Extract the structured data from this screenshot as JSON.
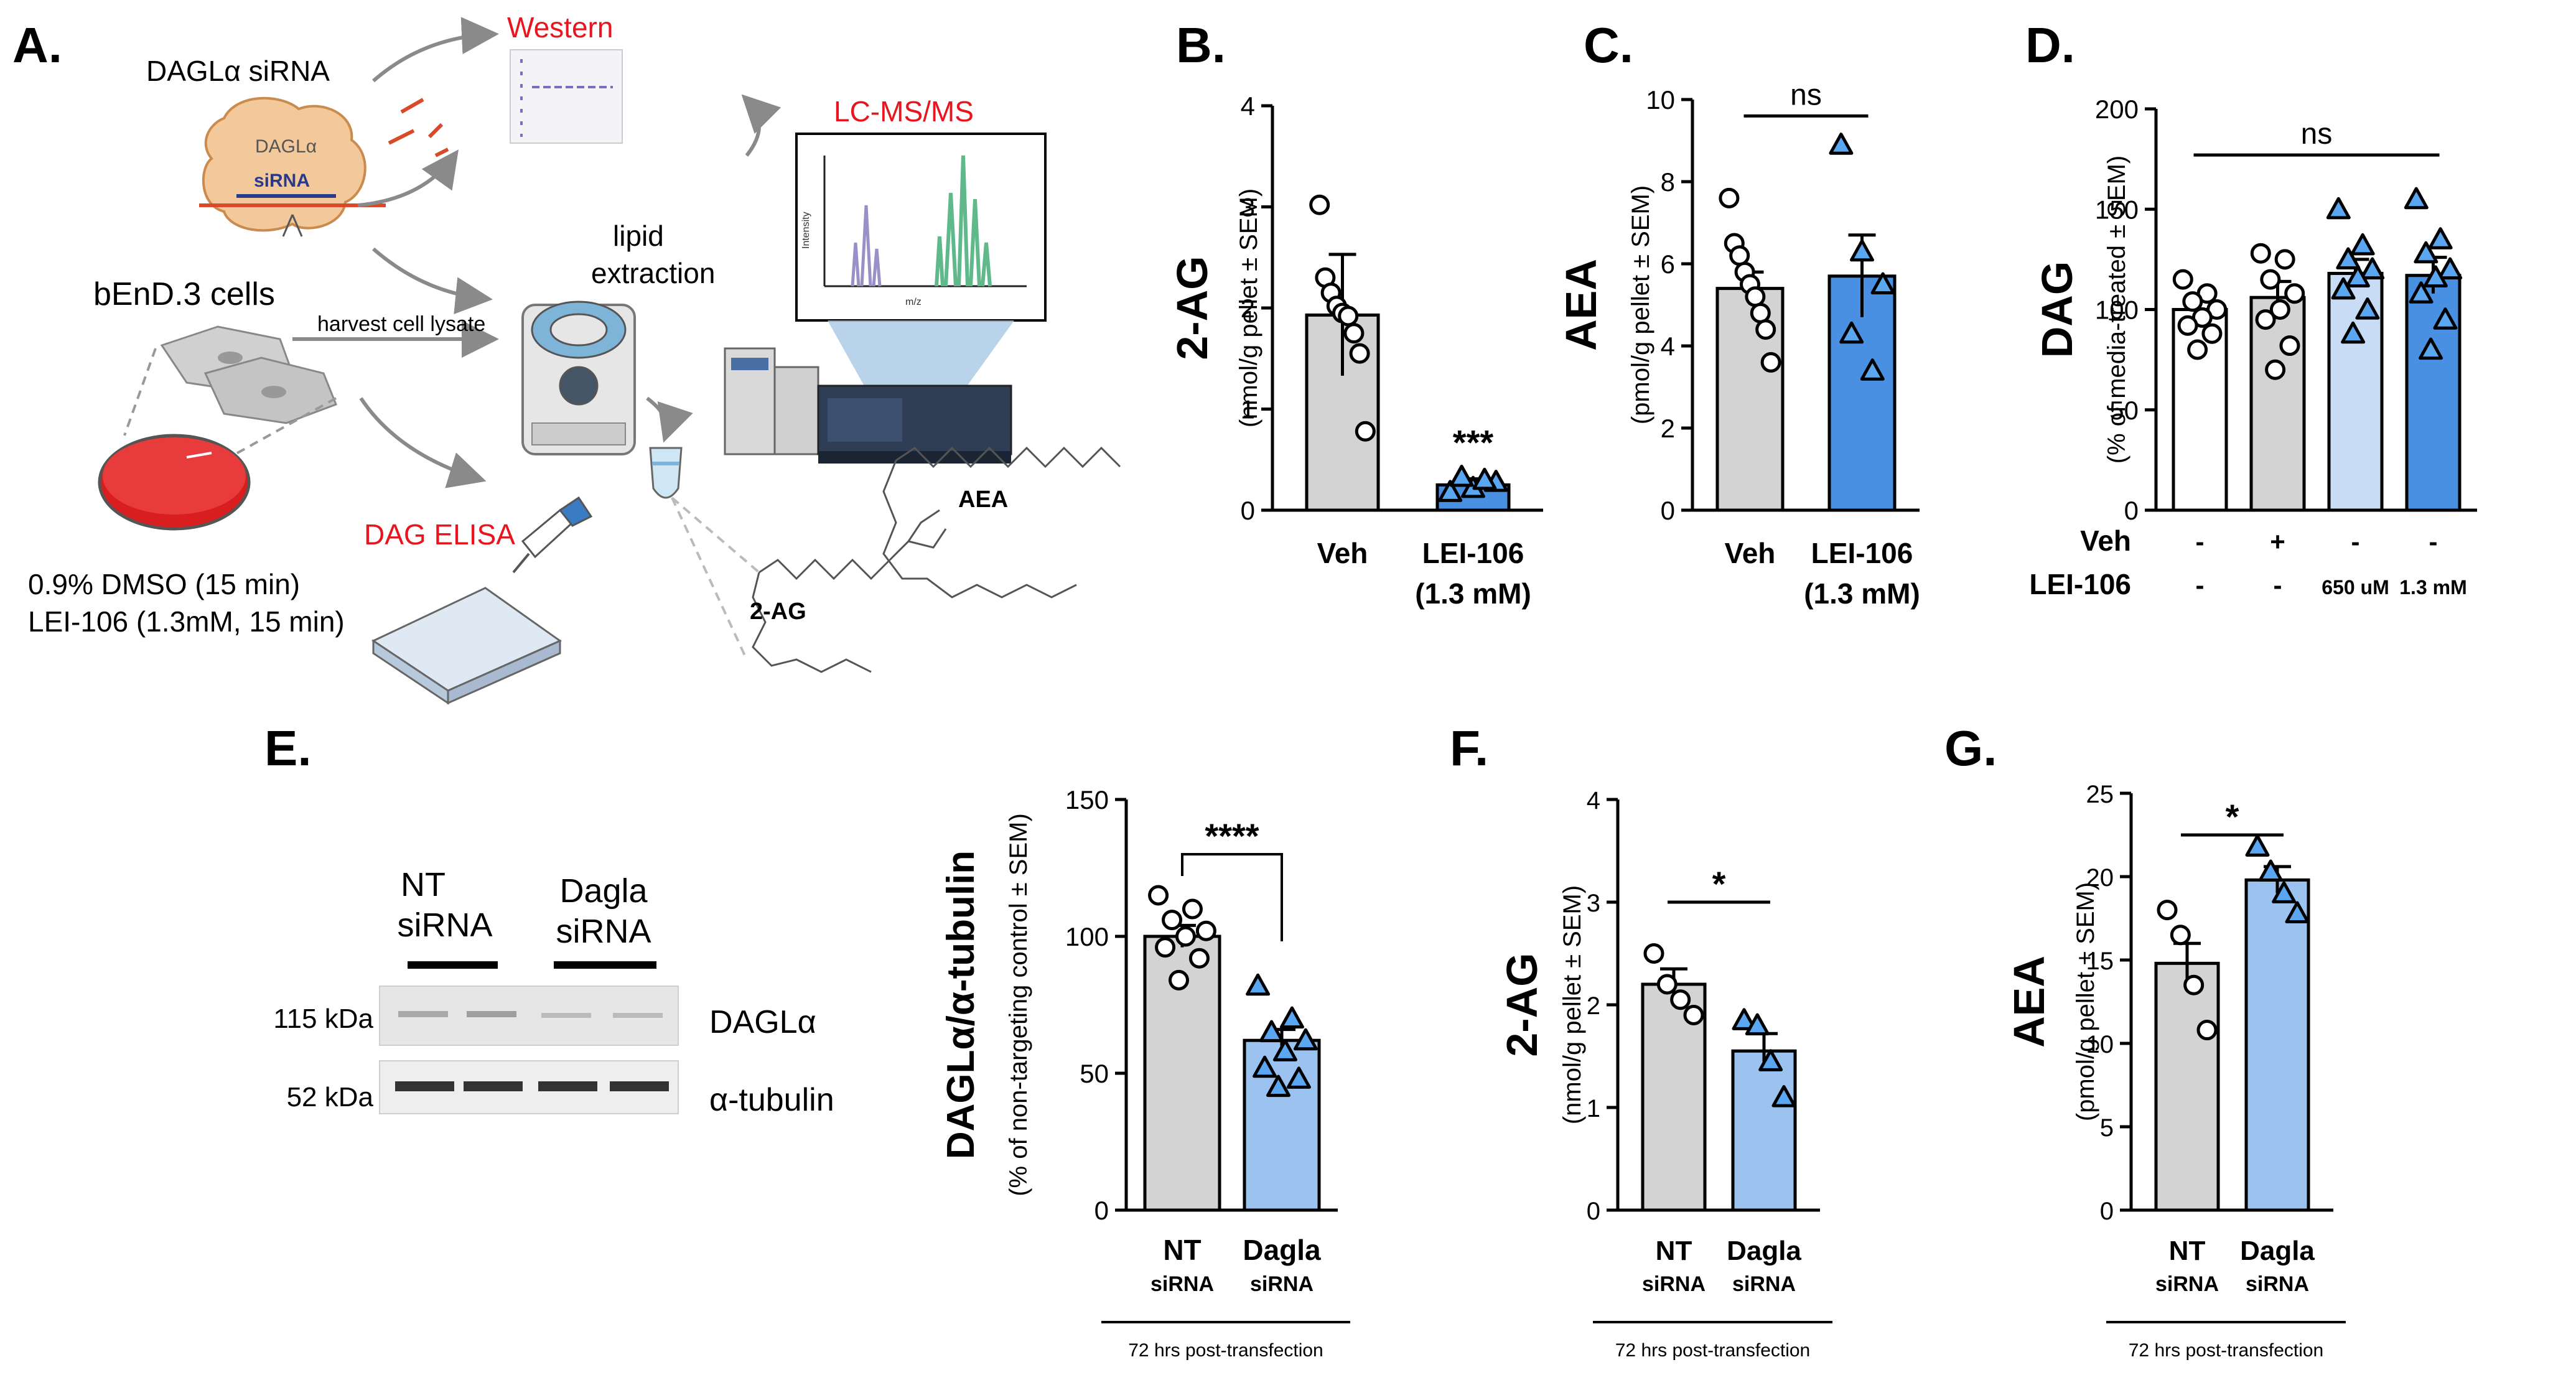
{
  "colors": {
    "grey_bar": "#d3d3d3",
    "blue_bar": "#4a90e2",
    "light_blue_bar": "#c9dcf5",
    "mid_blue_bar": "#9cc3f0",
    "red_text": "#e8141e",
    "lc_green": "#5fb98a",
    "lc_purple": "#9a8fc6",
    "dish_red": "#d81e1e"
  },
  "panel_a": {
    "letter": "A.",
    "western": "Western",
    "dagl_sirna": "DAGLα siRNA",
    "dagla_protein": "DAGLα",
    "sirna_label": "siRNA",
    "bend3": "bEnD.3 cells",
    "harvest": "harvest cell lysate",
    "lipid_line1": "lipid",
    "lipid_line2": "extraction",
    "lcms": "LC-MS/MS",
    "intensity": "Intensity",
    "mz": "m/z",
    "dag_elisa": "DAG ELISA",
    "treat_line1": "0.9% DMSO (15 min)",
    "treat_line2": "LEI-106 (1.3mM, 15 min)",
    "mol_2ag": "2-AG",
    "mol_aea": "AEA"
  },
  "panel_e_blot": {
    "letter": "E.",
    "group1_line1": "NT",
    "group1_line2": "siRNA",
    "group2_line1": "Dagla",
    "group2_line2": "siRNA",
    "band1_kda": "115 kDa",
    "band1_name": "DAGLα",
    "band2_kda": "52 kDa",
    "band2_name": "α-tubulin"
  },
  "chart_data": [
    {
      "id": "B",
      "type": "bar",
      "letter": "B.",
      "ylabel_main": "2-AG",
      "ylabel_sub": "(nmol/g pellet ± SEM)",
      "ylim": [
        0,
        4
      ],
      "yticks": [
        "0",
        "1",
        "2",
        "3",
        "4"
      ],
      "categories": [
        {
          "line1": "Veh",
          "line2": ""
        },
        {
          "line1": "LEI-106",
          "line2": "(1.3 mM)"
        }
      ],
      "values": [
        1.93,
        0.25
      ],
      "errors": [
        0.6,
        0.06
      ],
      "markers": [
        "circle",
        "triangle"
      ],
      "colors": [
        "#d3d3d3",
        "#4a90e2"
      ],
      "points": [
        [
          3.02,
          2.3,
          2.15,
          2.02,
          1.95,
          1.92,
          1.75,
          1.55,
          0.78
        ],
        [
          0.18,
          0.22,
          0.28,
          0.33,
          0.3
        ]
      ],
      "annotations": [
        {
          "text": "***",
          "bar": 1,
          "y": 0.55
        }
      ]
    },
    {
      "id": "C",
      "type": "bar",
      "letter": "C.",
      "ylabel_main": "AEA",
      "ylabel_sub": "(pmol/g pellet ± SEM)",
      "ylim": [
        0,
        10
      ],
      "yticks": [
        "0",
        "2",
        "4",
        "6",
        "8",
        "10"
      ],
      "categories": [
        {
          "line1": "Veh",
          "line2": ""
        },
        {
          "line1": "LEI-106",
          "line2": "(1.3 mM)"
        }
      ],
      "values": [
        5.4,
        5.7
      ],
      "errors": [
        0.4,
        1.0
      ],
      "markers": [
        "circle",
        "triangle"
      ],
      "colors": [
        "#d3d3d3",
        "#4a90e2"
      ],
      "points": [
        [
          7.6,
          6.5,
          6.2,
          5.8,
          5.5,
          5.2,
          4.8,
          4.4,
          3.6
        ],
        [
          8.9,
          6.3,
          5.5,
          4.3,
          3.4
        ]
      ],
      "annotations": [
        {
          "text": "ns",
          "x1": 0,
          "x2": 1,
          "y": 9.6
        }
      ]
    },
    {
      "id": "D",
      "type": "bar",
      "letter": "D.",
      "ylabel_main": "DAG",
      "ylabel_sub": "(% of media-treated ± SEM)",
      "ylim": [
        0,
        200
      ],
      "yticks": [
        "0",
        "50",
        "100",
        "150",
        "200"
      ],
      "values": [
        100,
        106,
        118,
        117
      ],
      "errors": [
        5,
        8,
        7,
        9
      ],
      "markers": [
        "circle",
        "circle",
        "triangle",
        "triangle"
      ],
      "colors": [
        "#ffffff",
        "#d3d3d3",
        "#c9dcf5",
        "#4a90e2"
      ],
      "points": [
        [
          115,
          108,
          104,
          100,
          96,
          92,
          88,
          80
        ],
        [
          128,
          125,
          115,
          108,
          100,
          95,
          82,
          70
        ],
        [
          150,
          132,
          125,
          120,
          116,
          110,
          100,
          88
        ],
        [
          155,
          135,
          128,
          120,
          116,
          108,
          95,
          80
        ]
      ],
      "row_labels": [
        {
          "label": "Veh",
          "cells": [
            "-",
            "+",
            "-",
            "-"
          ]
        },
        {
          "label": "LEI-106",
          "cells": [
            "-",
            "-",
            "650 uM",
            "1.3 mM"
          ]
        }
      ],
      "annotations": [
        {
          "text": "ns",
          "x1": 0,
          "x2": 3,
          "y": 177
        }
      ]
    },
    {
      "id": "E",
      "type": "bar",
      "ylabel_main": "DAGLα/α-tubulin",
      "ylabel_sub": "(% of non-targeting control ± SEM)",
      "ylim": [
        0,
        150
      ],
      "yticks": [
        "0",
        "50",
        "100",
        "150"
      ],
      "categories": [
        {
          "line1": "NT",
          "line2": "siRNA"
        },
        {
          "line1": "Dagla",
          "line2": "siRNA"
        }
      ],
      "values": [
        100,
        62
      ],
      "errors": [
        4,
        4
      ],
      "markers": [
        "circle",
        "triangle"
      ],
      "colors": [
        "#d3d3d3",
        "#9cc3f0"
      ],
      "points": [
        [
          115,
          110,
          106,
          102,
          100,
          96,
          92,
          84
        ],
        [
          82,
          70,
          65,
          62,
          58,
          52,
          48,
          45
        ]
      ],
      "footnote": "72 hrs post-transfection",
      "annotations": [
        {
          "text": "****",
          "x1": 0,
          "x2": 1,
          "y": 130,
          "bracket": true
        }
      ]
    },
    {
      "id": "F",
      "type": "bar",
      "letter": "F.",
      "ylabel_main": "2-AG",
      "ylabel_sub": "(nmol/g pellet ± SEM)",
      "ylim": [
        0,
        4
      ],
      "yticks": [
        "0",
        "1",
        "2",
        "3",
        "4"
      ],
      "categories": [
        {
          "line1": "NT",
          "line2": "siRNA"
        },
        {
          "line1": "Dagla",
          "line2": "siRNA"
        }
      ],
      "values": [
        2.2,
        1.55
      ],
      "errors": [
        0.15,
        0.17
      ],
      "markers": [
        "circle",
        "triangle"
      ],
      "colors": [
        "#d3d3d3",
        "#9cc3f0"
      ],
      "points": [
        [
          2.5,
          2.2,
          2.05,
          1.9
        ],
        [
          1.85,
          1.8,
          1.45,
          1.1
        ]
      ],
      "footnote": "72 hrs post-transfection",
      "annotations": [
        {
          "text": "*",
          "x1": 0,
          "x2": 1,
          "y": 3.0
        }
      ]
    },
    {
      "id": "G",
      "type": "bar",
      "letter": "G.",
      "ylabel_main": "AEA",
      "ylabel_sub": "(pmol/g pellet ± SEM)",
      "ylim": [
        0,
        25
      ],
      "yticks": [
        "0",
        "5",
        "10",
        "15",
        "20",
        "25"
      ],
      "categories": [
        {
          "line1": "NT",
          "line2": "siRNA"
        },
        {
          "line1": "Dagla",
          "line2": "siRNA"
        }
      ],
      "values": [
        14.8,
        19.8
      ],
      "errors": [
        1.2,
        0.8
      ],
      "markers": [
        "circle",
        "triangle"
      ],
      "colors": [
        "#d3d3d3",
        "#9cc3f0"
      ],
      "points": [
        [
          18,
          16.5,
          13.5,
          10.8
        ],
        [
          21.8,
          20.3,
          19.0,
          17.8
        ]
      ],
      "footnote": "72 hrs post-transfection",
      "annotations": [
        {
          "text": "*",
          "x1": 0,
          "x2": 1,
          "y": 22.5
        }
      ]
    }
  ]
}
